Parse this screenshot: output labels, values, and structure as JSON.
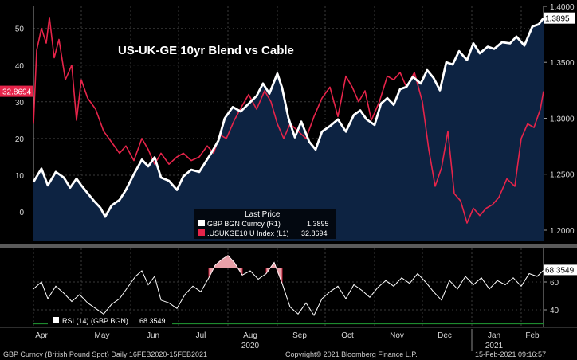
{
  "chart_data": [
    {
      "type": "line",
      "title": "US-UK-GE 10yr Blend vs Cable",
      "x_range": [
        "2020-04-01",
        "2021-02-15"
      ],
      "month_ticks": [
        "Apr",
        "May",
        "Jun",
        "Jul",
        "Aug",
        "Sep",
        "Oct",
        "Nov",
        "Dec",
        "Jan",
        "Feb"
      ],
      "year_ticks": [
        "2020",
        "2021"
      ],
      "left_axis": {
        "ticks": [
          "50",
          "40",
          "30",
          "20",
          "10",
          "0"
        ],
        "ylim": [
          -8,
          56
        ]
      },
      "right_axis": {
        "ticks": [
          "1.4000",
          "1.3500",
          "1.3000",
          "1.2500",
          "1.2000"
        ],
        "ylim": [
          1.19,
          1.4
        ]
      },
      "legend_header": "Last Price",
      "series": [
        {
          "name": "GBP BGN Curncy (R1)",
          "axis": "right",
          "color": "#ffffff",
          "last_value": "1.3895",
          "points": [
            [
              "2020-04-01",
              1.243
            ],
            [
              "2020-04-06",
              1.255
            ],
            [
              "2020-04-10",
              1.24
            ],
            [
              "2020-04-15",
              1.252
            ],
            [
              "2020-04-20",
              1.247
            ],
            [
              "2020-04-24",
              1.238
            ],
            [
              "2020-04-28",
              1.246
            ],
            [
              "2020-05-01",
              1.24
            ],
            [
              "2020-05-05",
              1.233
            ],
            [
              "2020-05-09",
              1.226
            ],
            [
              "2020-05-13",
              1.22
            ],
            [
              "2020-05-16",
              1.212
            ],
            [
              "2020-05-20",
              1.222
            ],
            [
              "2020-05-25",
              1.227
            ],
            [
              "2020-05-29",
              1.236
            ],
            [
              "2020-06-03",
              1.25
            ],
            [
              "2020-06-08",
              1.263
            ],
            [
              "2020-06-12",
              1.257
            ],
            [
              "2020-06-16",
              1.265
            ],
            [
              "2020-06-20",
              1.247
            ],
            [
              "2020-06-25",
              1.244
            ],
            [
              "2020-06-30",
              1.236
            ],
            [
              "2020-07-04",
              1.248
            ],
            [
              "2020-07-09",
              1.254
            ],
            [
              "2020-07-14",
              1.252
            ],
            [
              "2020-07-18",
              1.261
            ],
            [
              "2020-07-22",
              1.27
            ],
            [
              "2020-07-26",
              1.28
            ],
            [
              "2020-07-30",
              1.3
            ],
            [
              "2020-08-04",
              1.31
            ],
            [
              "2020-08-09",
              1.306
            ],
            [
              "2020-08-14",
              1.313
            ],
            [
              "2020-08-19",
              1.32
            ],
            [
              "2020-08-23",
              1.331
            ],
            [
              "2020-08-27",
              1.322
            ],
            [
              "2020-09-01",
              1.34
            ],
            [
              "2020-09-04",
              1.327
            ],
            [
              "2020-09-08",
              1.3
            ],
            [
              "2020-09-12",
              1.283
            ],
            [
              "2020-09-16",
              1.297
            ],
            [
              "2020-09-21",
              1.279
            ],
            [
              "2020-09-25",
              1.272
            ],
            [
              "2020-09-29",
              1.288
            ],
            [
              "2020-10-04",
              1.293
            ],
            [
              "2020-10-09",
              1.299
            ],
            [
              "2020-10-14",
              1.288
            ],
            [
              "2020-10-19",
              1.303
            ],
            [
              "2020-10-23",
              1.307
            ],
            [
              "2020-10-27",
              1.299
            ],
            [
              "2020-11-01",
              1.294
            ],
            [
              "2020-11-05",
              1.313
            ],
            [
              "2020-11-09",
              1.318
            ],
            [
              "2020-11-13",
              1.312
            ],
            [
              "2020-11-17",
              1.326
            ],
            [
              "2020-11-21",
              1.328
            ],
            [
              "2020-11-25",
              1.337
            ],
            [
              "2020-11-30",
              1.331
            ],
            [
              "2020-12-04",
              1.343
            ],
            [
              "2020-12-08",
              1.336
            ],
            [
              "2020-12-12",
              1.325
            ],
            [
              "2020-12-16",
              1.35
            ],
            [
              "2020-12-20",
              1.348
            ],
            [
              "2020-12-24",
              1.36
            ],
            [
              "2020-12-29",
              1.352
            ],
            [
              "2021-01-02",
              1.367
            ],
            [
              "2021-01-06",
              1.358
            ],
            [
              "2021-01-11",
              1.364
            ],
            [
              "2021-01-15",
              1.362
            ],
            [
              "2021-01-20",
              1.368
            ],
            [
              "2021-01-25",
              1.367
            ],
            [
              "2021-01-29",
              1.373
            ],
            [
              "2021-02-03",
              1.365
            ],
            [
              "2021-02-08",
              1.382
            ],
            [
              "2021-02-12",
              1.384
            ],
            [
              "2021-02-15",
              1.3895
            ]
          ]
        },
        {
          "name": ".USUKGE10 U Index (L1)",
          "axis": "left",
          "color": "#e6244a",
          "last_value": "32.8694",
          "points": [
            [
              "2020-04-01",
              24
            ],
            [
              "2020-04-03",
              44
            ],
            [
              "2020-04-06",
              50
            ],
            [
              "2020-04-09",
              46
            ],
            [
              "2020-04-11",
              53
            ],
            [
              "2020-04-14",
              42
            ],
            [
              "2020-04-17",
              47
            ],
            [
              "2020-04-21",
              36
            ],
            [
              "2020-04-25",
              40
            ],
            [
              "2020-04-28",
              25
            ],
            [
              "2020-05-01",
              36
            ],
            [
              "2020-05-05",
              31
            ],
            [
              "2020-05-10",
              28
            ],
            [
              "2020-05-15",
              22
            ],
            [
              "2020-05-20",
              19
            ],
            [
              "2020-05-25",
              16
            ],
            [
              "2020-05-29",
              18
            ],
            [
              "2020-06-03",
              14
            ],
            [
              "2020-06-08",
              20
            ],
            [
              "2020-06-12",
              17
            ],
            [
              "2020-06-16",
              13
            ],
            [
              "2020-06-20",
              16
            ],
            [
              "2020-06-25",
              13
            ],
            [
              "2020-06-30",
              15
            ],
            [
              "2020-07-04",
              16
            ],
            [
              "2020-07-09",
              14
            ],
            [
              "2020-07-14",
              15
            ],
            [
              "2020-07-19",
              18
            ],
            [
              "2020-07-23",
              16
            ],
            [
              "2020-07-27",
              21
            ],
            [
              "2020-07-31",
              20
            ],
            [
              "2020-08-05",
              25
            ],
            [
              "2020-08-10",
              29
            ],
            [
              "2020-08-14",
              32
            ],
            [
              "2020-08-19",
              28
            ],
            [
              "2020-08-24",
              33
            ],
            [
              "2020-08-28",
              30
            ],
            [
              "2020-09-01",
              24
            ],
            [
              "2020-09-05",
              20
            ],
            [
              "2020-09-09",
              24
            ],
            [
              "2020-09-14",
              22
            ],
            [
              "2020-09-19",
              20
            ],
            [
              "2020-09-24",
              26
            ],
            [
              "2020-09-29",
              31
            ],
            [
              "2020-10-04",
              34
            ],
            [
              "2020-10-09",
              26
            ],
            [
              "2020-10-14",
              37
            ],
            [
              "2020-10-18",
              34
            ],
            [
              "2020-10-22",
              30
            ],
            [
              "2020-10-26",
              33
            ],
            [
              "2020-10-30",
              25
            ],
            [
              "2020-11-04",
              30
            ],
            [
              "2020-11-09",
              37
            ],
            [
              "2020-11-13",
              36
            ],
            [
              "2020-11-17",
              38
            ],
            [
              "2020-11-21",
              34
            ],
            [
              "2020-11-26",
              38
            ],
            [
              "2020-12-01",
              30
            ],
            [
              "2020-12-05",
              17
            ],
            [
              "2020-12-09",
              7
            ],
            [
              "2020-12-13",
              12
            ],
            [
              "2020-12-17",
              22
            ],
            [
              "2020-12-21",
              5
            ],
            [
              "2020-12-25",
              3
            ],
            [
              "2020-12-29",
              -3
            ],
            [
              "2021-01-02",
              1
            ],
            [
              "2021-01-06",
              -1
            ],
            [
              "2021-01-10",
              1
            ],
            [
              "2021-01-14",
              2
            ],
            [
              "2021-01-18",
              4
            ],
            [
              "2021-01-23",
              9
            ],
            [
              "2021-01-28",
              7
            ],
            [
              "2021-02-01",
              20
            ],
            [
              "2021-02-05",
              24
            ],
            [
              "2021-02-09",
              23
            ],
            [
              "2021-02-13",
              28
            ],
            [
              "2021-02-15",
              32.8694
            ]
          ]
        }
      ]
    },
    {
      "type": "line",
      "series": [
        {
          "name": "RSI (14) (GBP BGN)",
          "color": "#ffffff",
          "last_value": "68.3549",
          "points": [
            [
              "2020-04-01",
              55
            ],
            [
              "2020-04-06",
              60
            ],
            [
              "2020-04-10",
              48
            ],
            [
              "2020-04-15",
              57
            ],
            [
              "2020-04-20",
              52
            ],
            [
              "2020-04-25",
              46
            ],
            [
              "2020-04-30",
              51
            ],
            [
              "2020-05-05",
              45
            ],
            [
              "2020-05-10",
              41
            ],
            [
              "2020-05-15",
              37
            ],
            [
              "2020-05-20",
              44
            ],
            [
              "2020-05-25",
              48
            ],
            [
              "2020-05-30",
              56
            ],
            [
              "2020-06-04",
              64
            ],
            [
              "2020-06-08",
              68
            ],
            [
              "2020-06-12",
              58
            ],
            [
              "2020-06-16",
              64
            ],
            [
              "2020-06-20",
              47
            ],
            [
              "2020-06-25",
              45
            ],
            [
              "2020-06-30",
              41
            ],
            [
              "2020-07-05",
              51
            ],
            [
              "2020-07-10",
              57
            ],
            [
              "2020-07-15",
              53
            ],
            [
              "2020-07-20",
              63
            ],
            [
              "2020-07-24",
              72
            ],
            [
              "2020-07-28",
              76
            ],
            [
              "2020-08-01",
              79
            ],
            [
              "2020-08-05",
              74
            ],
            [
              "2020-08-10",
              65
            ],
            [
              "2020-08-15",
              68
            ],
            [
              "2020-08-20",
              62
            ],
            [
              "2020-08-25",
              66
            ],
            [
              "2020-08-30",
              74
            ],
            [
              "2020-09-04",
              59
            ],
            [
              "2020-09-09",
              42
            ],
            [
              "2020-09-14",
              37
            ],
            [
              "2020-09-19",
              45
            ],
            [
              "2020-09-24",
              36
            ],
            [
              "2020-09-29",
              48
            ],
            [
              "2020-10-04",
              53
            ],
            [
              "2020-10-09",
              57
            ],
            [
              "2020-10-14",
              48
            ],
            [
              "2020-10-19",
              58
            ],
            [
              "2020-10-24",
              54
            ],
            [
              "2020-10-29",
              49
            ],
            [
              "2020-11-03",
              56
            ],
            [
              "2020-11-08",
              61
            ],
            [
              "2020-11-13",
              57
            ],
            [
              "2020-11-18",
              63
            ],
            [
              "2020-11-23",
              59
            ],
            [
              "2020-11-28",
              66
            ],
            [
              "2020-12-03",
              60
            ],
            [
              "2020-12-08",
              53
            ],
            [
              "2020-12-13",
              47
            ],
            [
              "2020-12-18",
              61
            ],
            [
              "2020-12-23",
              55
            ],
            [
              "2020-12-28",
              64
            ],
            [
              "2021-01-02",
              58
            ],
            [
              "2021-01-07",
              63
            ],
            [
              "2021-01-12",
              55
            ],
            [
              "2021-01-17",
              61
            ],
            [
              "2021-01-22",
              58
            ],
            [
              "2021-01-27",
              63
            ],
            [
              "2021-02-01",
              57
            ],
            [
              "2021-02-06",
              66
            ],
            [
              "2021-02-11",
              64
            ],
            [
              "2021-02-15",
              68.3549
            ]
          ]
        }
      ],
      "y_ticks": [
        "60",
        "40"
      ],
      "ylim": [
        28,
        84
      ],
      "bands": {
        "overbought": 70,
        "oversold": 30
      }
    }
  ],
  "footer": {
    "left": "GBP Curncy (British Pound Spot)  Daily 16FEB2020-15FEB2021",
    "center": "Copyright© 2021 Bloomberg Finance L.P.",
    "right": "15-Feb-2021 09:16:57"
  },
  "colors": {
    "panel_fill": "#0d2342",
    "gbp_line": "#ffffff",
    "blend_line": "#e6244a",
    "rsi_overbought": "#c4203a",
    "rsi_oversold": "#1d8a2e"
  }
}
